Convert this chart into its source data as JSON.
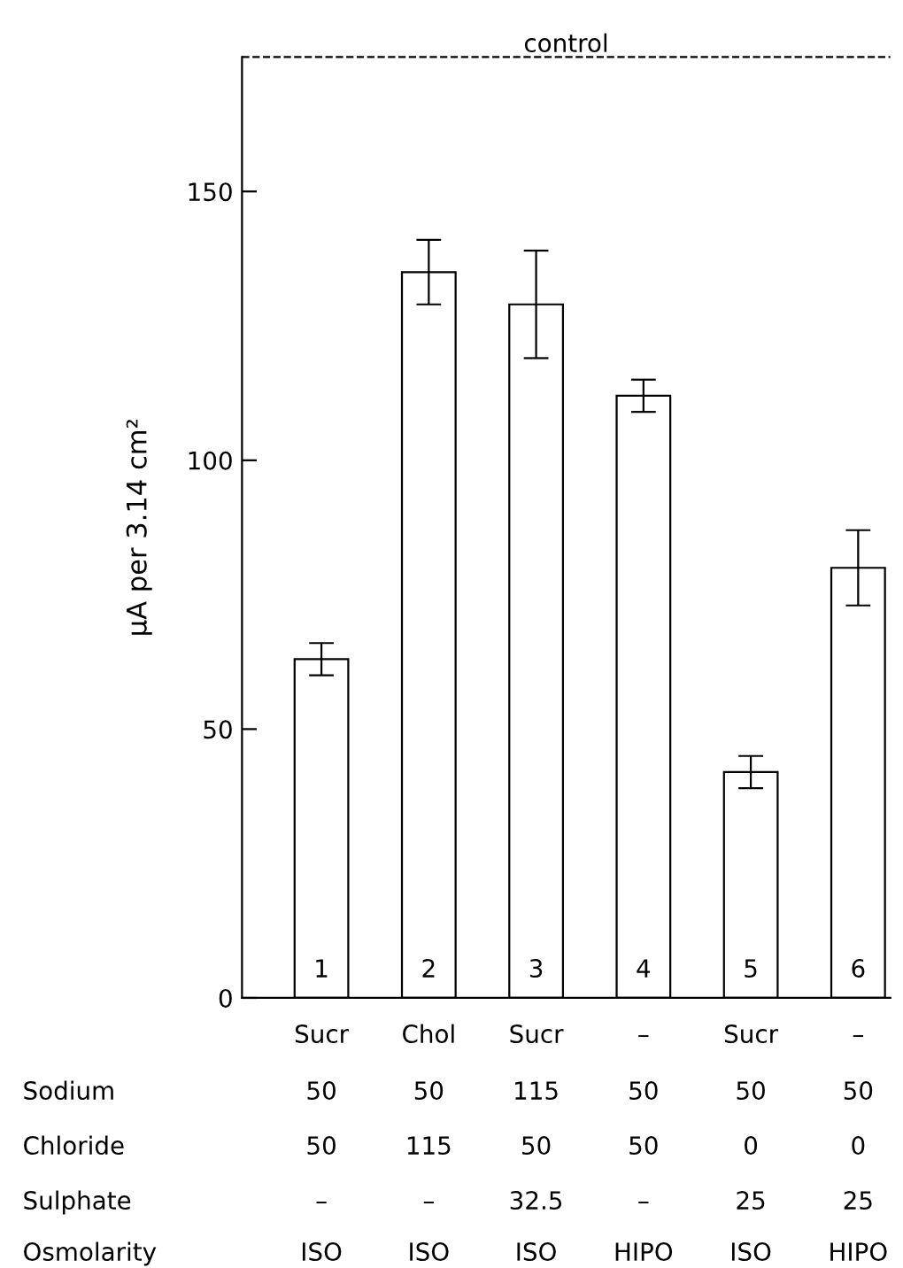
{
  "chart_data": {
    "type": "bar",
    "ylabel": "μA per 3.14 cm²",
    "categories": [
      "1",
      "2",
      "3",
      "4",
      "5",
      "6"
    ],
    "values": [
      63,
      135,
      129,
      112,
      42,
      80
    ],
    "errors": [
      3,
      6,
      10,
      3,
      3,
      7
    ],
    "color": "#ffffff",
    "ylim": [
      0,
      175
    ],
    "yticks": [
      0,
      50,
      100,
      150
    ],
    "grid": false,
    "legend": false,
    "ref_lines": [
      {
        "axis": "y",
        "value": 175,
        "label": "control",
        "line_style": "dashed",
        "color": "#000000"
      }
    ],
    "annotations": [
      "Sucr",
      "Chol",
      "Sucr",
      "–",
      "Sucr",
      "–",
      "Sodium",
      "50",
      "50",
      "115",
      "50",
      "50",
      "50",
      "Chloride",
      "50",
      "115",
      "50",
      "50",
      "0",
      "0",
      "Sulphate",
      "–",
      "–",
      "32.5",
      "–",
      "25",
      "25",
      "Osmolarity",
      "ISO",
      "ISO",
      "ISO",
      "HIPO",
      "ISO",
      "HIPO"
    ]
  }
}
